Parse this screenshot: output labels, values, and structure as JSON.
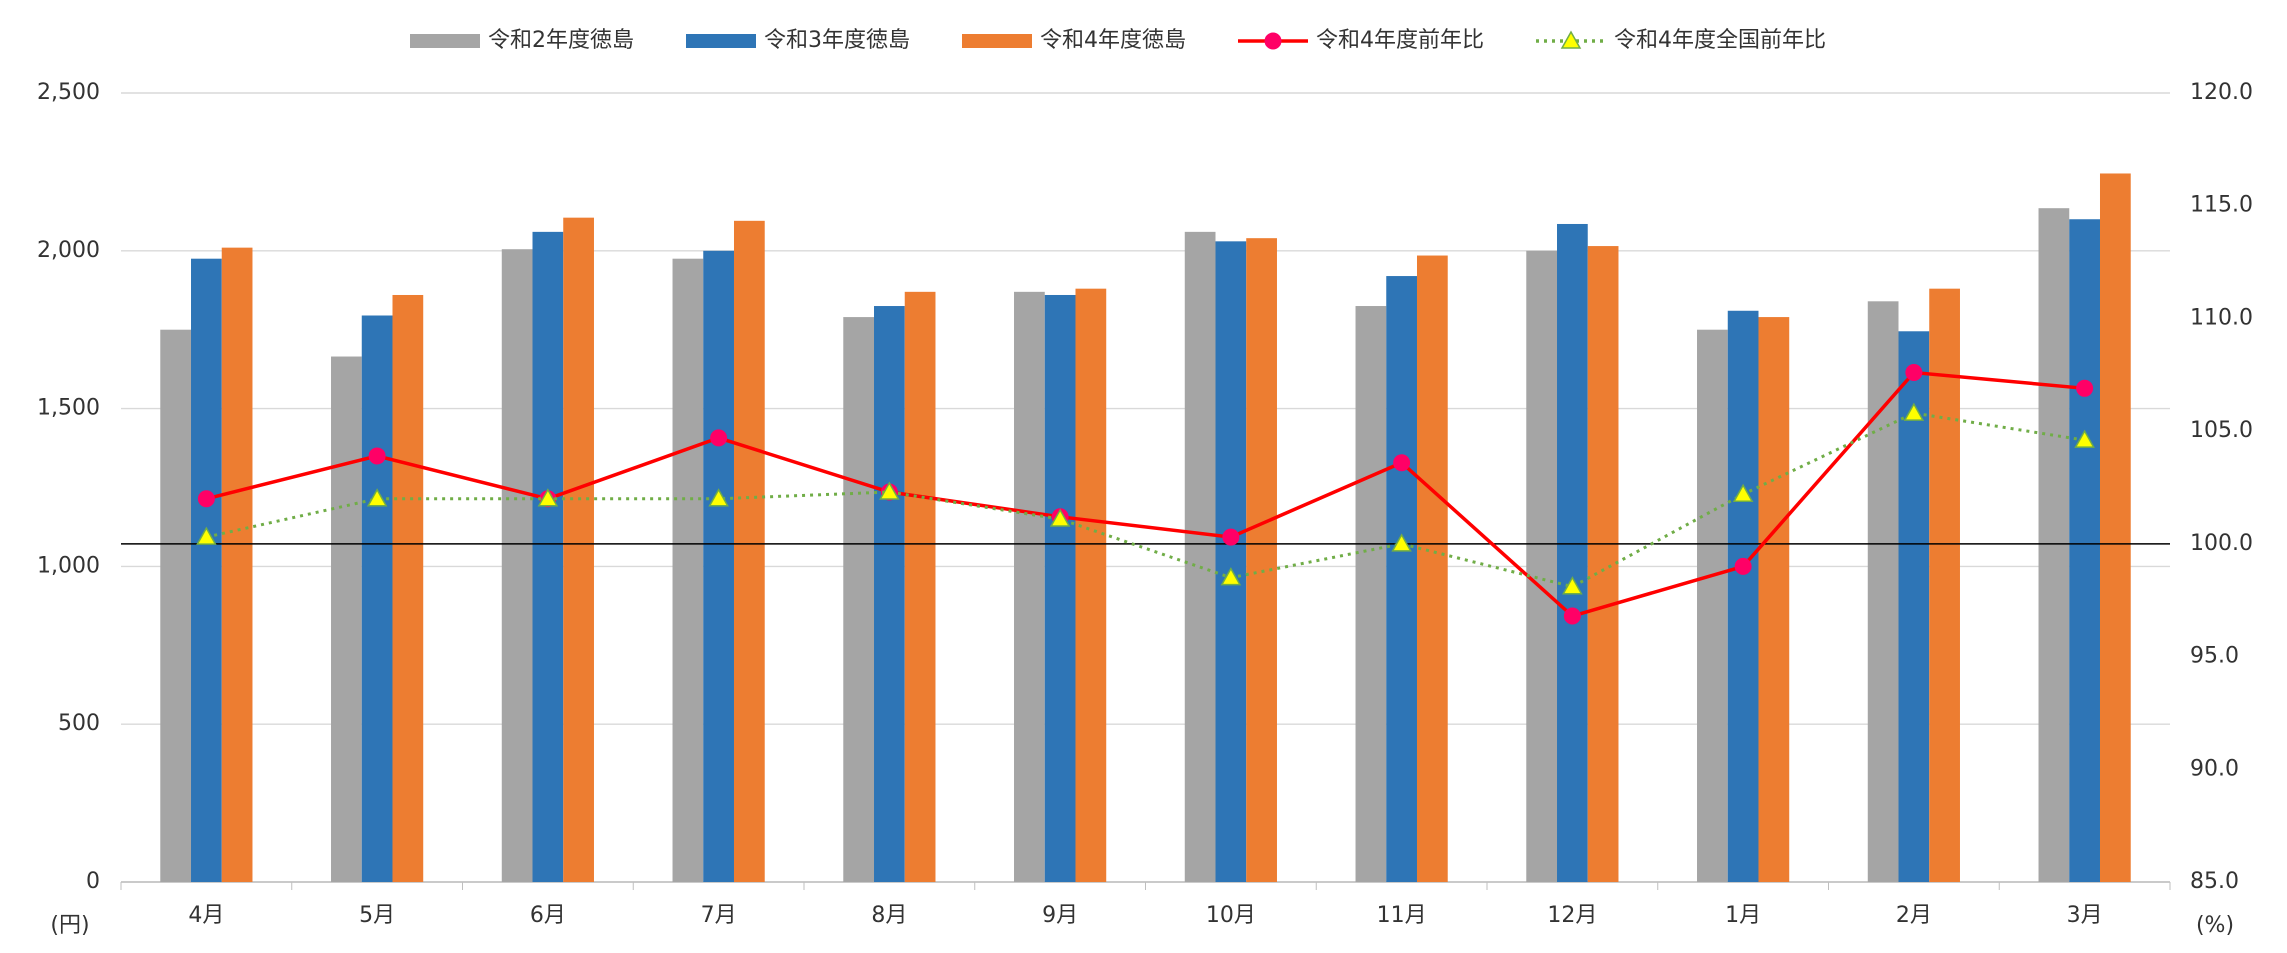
{
  "chart_data": {
    "type": "bar",
    "categories": [
      "4月",
      "5月",
      "6月",
      "7月",
      "8月",
      "9月",
      "10月",
      "11月",
      "12月",
      "1月",
      "2月",
      "3月"
    ],
    "series": [
      {
        "name": "令和2年度徳島",
        "color": "#a5a5a5",
        "values": [
          1750,
          1665,
          2005,
          1975,
          1790,
          1870,
          2060,
          1825,
          2000,
          1750,
          1840,
          2135
        ]
      },
      {
        "name": "令和3年度徳島",
        "color": "#2e75b6",
        "values": [
          1975,
          1795,
          2060,
          2000,
          1825,
          1860,
          2030,
          1920,
          2085,
          1810,
          1745,
          2100
        ]
      },
      {
        "name": "令和4年度徳島",
        "color": "#ed7d31",
        "values": [
          2010,
          1860,
          2105,
          2095,
          1870,
          1880,
          2040,
          1985,
          2015,
          1790,
          1880,
          2245
        ]
      },
      {
        "name": "令和4年度前年比",
        "type": "line",
        "axis": "y2",
        "color": "#ff0000",
        "marker": "circle",
        "marker_color": "#ff0066",
        "values": [
          102.0,
          103.9,
          102.0,
          104.7,
          102.3,
          101.2,
          100.3,
          103.6,
          96.8,
          99.0,
          107.6,
          106.9
        ]
      },
      {
        "name": "令和4年度全国前年比",
        "type": "line",
        "axis": "y2",
        "color": "#70ad47",
        "dashed": true,
        "marker": "triangle",
        "marker_color": "#ffff00",
        "values": [
          100.3,
          102.0,
          102.0,
          102.0,
          102.3,
          101.1,
          98.5,
          100.0,
          98.1,
          102.2,
          105.8,
          104.6
        ]
      }
    ],
    "ylim": [
      0,
      2500
    ],
    "yticks": [
      0,
      500,
      {
        "value": 1000,
        "label": "1,000"
      },
      {
        "value": 1500,
        "label": "1,500"
      },
      {
        "value": 2000,
        "label": "2,000"
      },
      {
        "value": 2500,
        "label": "2,500"
      }
    ],
    "y2lim": [
      85,
      120
    ],
    "y2ticks": [
      {
        "value": 85,
        "label": "85.0"
      },
      {
        "value": 90,
        "label": "90.0"
      },
      {
        "value": 95,
        "label": "95.0"
      },
      {
        "value": 100,
        "label": "100.0"
      },
      {
        "value": 105,
        "label": "105.0"
      },
      {
        "value": 110,
        "label": "110.0"
      },
      {
        "value": 115,
        "label": "115.0"
      },
      {
        "value": 120,
        "label": "120.0"
      }
    ],
    "y_unit": "(円)",
    "y2_unit": "(%)",
    "reference_line": {
      "axis": "y2",
      "value": 100
    },
    "grid": true
  }
}
